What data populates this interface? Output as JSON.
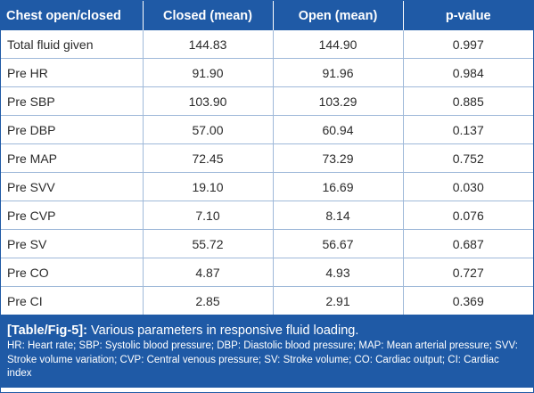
{
  "table": {
    "headers": [
      "Chest open/closed",
      "Closed (mean)",
      "Open (mean)",
      "p-value"
    ],
    "rows": [
      [
        "Total fluid given",
        "144.83",
        "144.90",
        "0.997"
      ],
      [
        "Pre HR",
        "91.90",
        "91.96",
        "0.984"
      ],
      [
        "Pre SBP",
        "103.90",
        "103.29",
        "0.885"
      ],
      [
        "Pre DBP",
        "57.00",
        "60.94",
        "0.137"
      ],
      [
        "Pre MAP",
        "72.45",
        "73.29",
        "0.752"
      ],
      [
        "Pre SVV",
        "19.10",
        "16.69",
        "0.030"
      ],
      [
        "Pre CVP",
        "7.10",
        "8.14",
        "0.076"
      ],
      [
        "Pre SV",
        "55.72",
        "56.67",
        "0.687"
      ],
      [
        "Pre CO",
        "4.87",
        "4.93",
        "0.727"
      ],
      [
        "Pre CI",
        "2.85",
        "2.91",
        "0.369"
      ]
    ]
  },
  "caption": {
    "ref": "[Table/Fig-5]:",
    "title": " Various parameters in responsive fluid loading.",
    "notes": "HR: Heart rate; SBP: Systolic blood pressure; DBP: Diastolic blood pressure; MAP: Mean arterial pressure; SVV: Stroke volume variation; CVP: Central venous pressure; SV: Stroke volume; CO: Cardiac output; CI: Cardiac index"
  },
  "colors": {
    "header_bg": "#1f5aa6",
    "grid": "#9fb9d9"
  }
}
